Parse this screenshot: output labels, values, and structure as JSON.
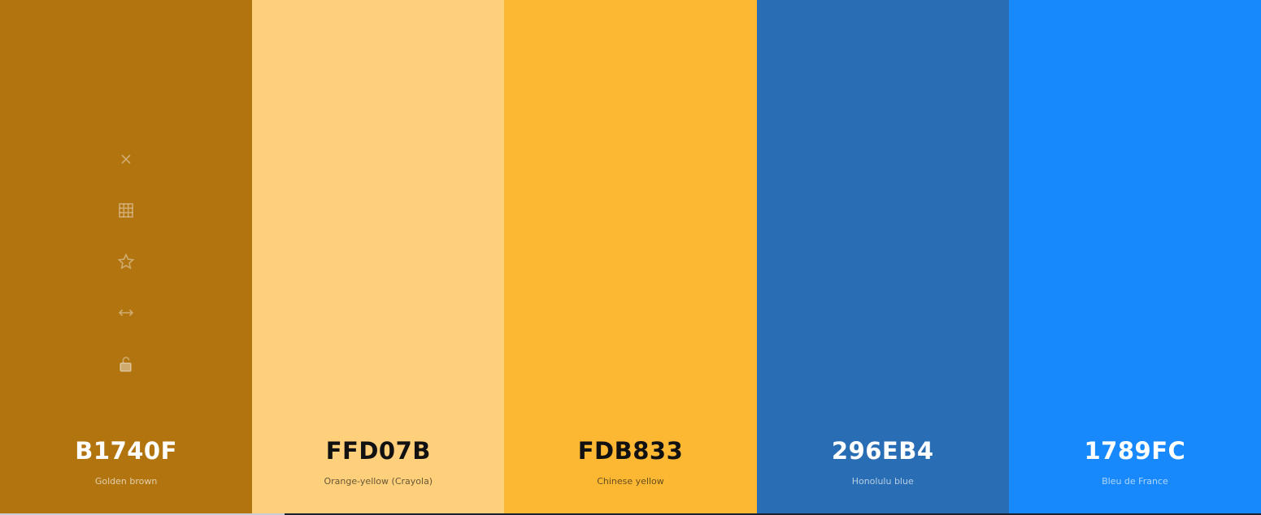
{
  "palette": {
    "swatches": [
      {
        "hex": "B1740F",
        "name": "Golden brown",
        "color": "#b1740f"
      },
      {
        "hex": "FFD07B",
        "name": "Orange-yellow (Crayola)",
        "color": "#ffd07b"
      },
      {
        "hex": "FDB833",
        "name": "Chinese yellow",
        "color": "#fdb833"
      },
      {
        "hex": "296EB4",
        "name": "Honolulu blue",
        "color": "#296eb4"
      },
      {
        "hex": "1789FC",
        "name": "Bleu de France",
        "color": "#1789fc"
      }
    ]
  }
}
